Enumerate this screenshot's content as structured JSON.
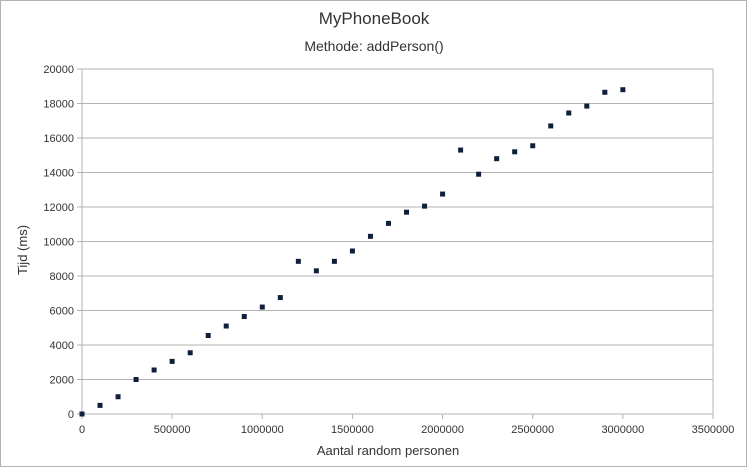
{
  "chart_data": {
    "type": "scatter",
    "title": "MyPhoneBook",
    "subtitle": "Methode: addPerson()",
    "xlabel": "Aantal random personen",
    "ylabel": "Tijd (ms)",
    "xlim": [
      0,
      3500000
    ],
    "ylim": [
      0,
      20000
    ],
    "x_ticks": [
      0,
      500000,
      1000000,
      1500000,
      2000000,
      2500000,
      3000000,
      3500000
    ],
    "y_ticks": [
      0,
      2000,
      4000,
      6000,
      8000,
      10000,
      12000,
      14000,
      16000,
      18000,
      20000
    ],
    "grid": "horizontal",
    "legend": "none",
    "marker_color": "#0f1f3a",
    "points": [
      [
        0,
        0
      ],
      [
        100000,
        500
      ],
      [
        200000,
        1000
      ],
      [
        300000,
        2000
      ],
      [
        400000,
        2550
      ],
      [
        500000,
        3050
      ],
      [
        600000,
        3550
      ],
      [
        700000,
        4550
      ],
      [
        800000,
        5100
      ],
      [
        900000,
        5650
      ],
      [
        1000000,
        6200
      ],
      [
        1100000,
        6750
      ],
      [
        1200000,
        8850
      ],
      [
        1300000,
        8300
      ],
      [
        1400000,
        8850
      ],
      [
        1500000,
        9450
      ],
      [
        1600000,
        10300
      ],
      [
        1700000,
        11050
      ],
      [
        1800000,
        11700
      ],
      [
        1900000,
        12050
      ],
      [
        2000000,
        12750
      ],
      [
        2100000,
        15300
      ],
      [
        2200000,
        13900
      ],
      [
        2300000,
        14800
      ],
      [
        2400000,
        15200
      ],
      [
        2500000,
        15550
      ],
      [
        2600000,
        16700
      ],
      [
        2700000,
        17450
      ],
      [
        2800000,
        17850
      ],
      [
        2900000,
        18650
      ],
      [
        3000000,
        18800
      ]
    ]
  }
}
